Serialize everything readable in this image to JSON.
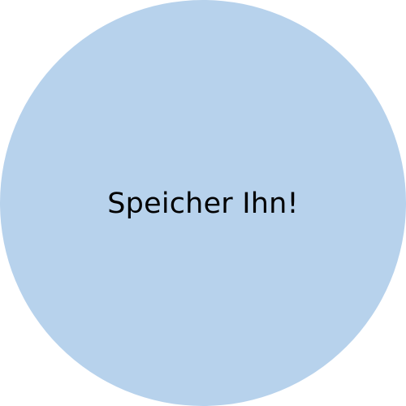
{
  "button": {
    "label": "Speicher Ihn!",
    "color": "#b7d2ec",
    "text_color": "#000000"
  }
}
